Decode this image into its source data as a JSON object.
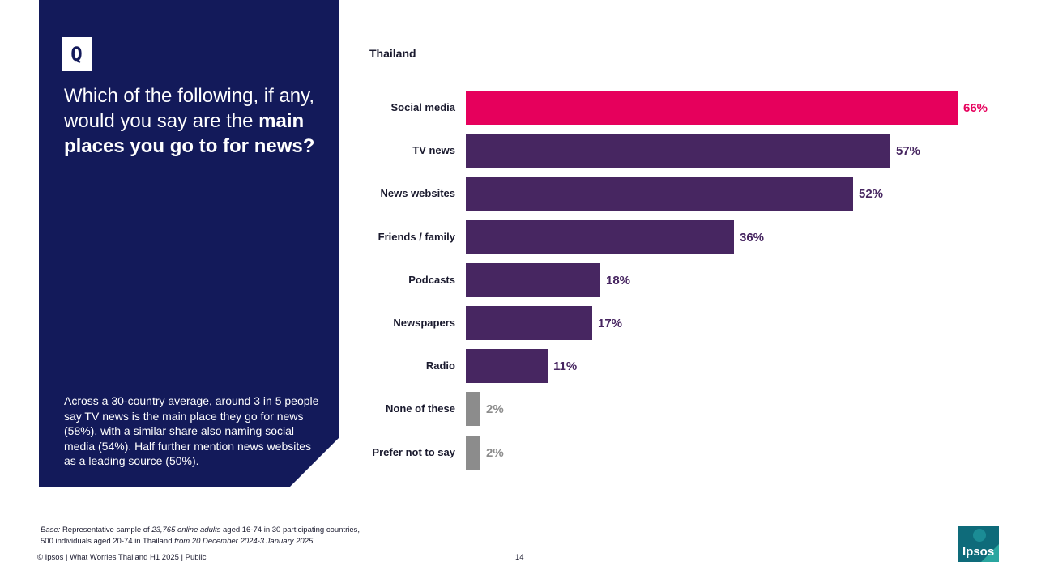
{
  "question_panel": {
    "badge": "Q",
    "question_regular": "Which of the following, if any, would you say are the",
    "question_bold": "main places you go to for news?",
    "summary": "Across a 30-country average, around 3 in 5 people say TV news is the main place they go for news (58%), with a similar share also naming social media (54%). Half further mention news websites as a leading source (50%)."
  },
  "chart_data": {
    "type": "bar",
    "orientation": "horizontal",
    "title": "Thailand",
    "categories": [
      "Social media",
      "TV news",
      "News websites",
      "Friends / family",
      "Podcasts",
      "Newspapers",
      "Radio",
      "None of these",
      "Prefer not to say"
    ],
    "values": [
      66,
      57,
      52,
      36,
      18,
      17,
      11,
      2,
      2
    ],
    "value_labels": [
      "66%",
      "57%",
      "52%",
      "36%",
      "18%",
      "17%",
      "11%",
      "2%",
      "2%"
    ],
    "bar_colors": [
      "#e6005c",
      "#472661",
      "#472661",
      "#472661",
      "#472661",
      "#472661",
      "#472661",
      "#8c8c8c",
      "#8c8c8c"
    ],
    "label_colors": [
      "#e6005c",
      "#472661",
      "#472661",
      "#472661",
      "#472661",
      "#472661",
      "#472661",
      "#8c8c8c",
      "#8c8c8c"
    ],
    "xlim": [
      0,
      66
    ]
  },
  "footnote": {
    "base_label": "Base:",
    "base_text_1": "Representative sample of",
    "base_count": "23,765 online adults",
    "base_text_2": "aged 16-74 in",
    "base_countries": "30",
    "base_text_3": "participating countries,",
    "base_line_2a": "500 individuals aged 20-74 in Thailand",
    "base_line_2b": "from 20 December 2024-3 January 2025"
  },
  "footer": {
    "copyright": "© Ipsos | What Worries Thailand H1 2025 | Public",
    "page_number": "14",
    "logo_text": "Ipsos"
  },
  "colors": {
    "panel": "#131a5a",
    "highlight": "#e6005c",
    "bar": "#472661",
    "neutral": "#8c8c8c"
  }
}
